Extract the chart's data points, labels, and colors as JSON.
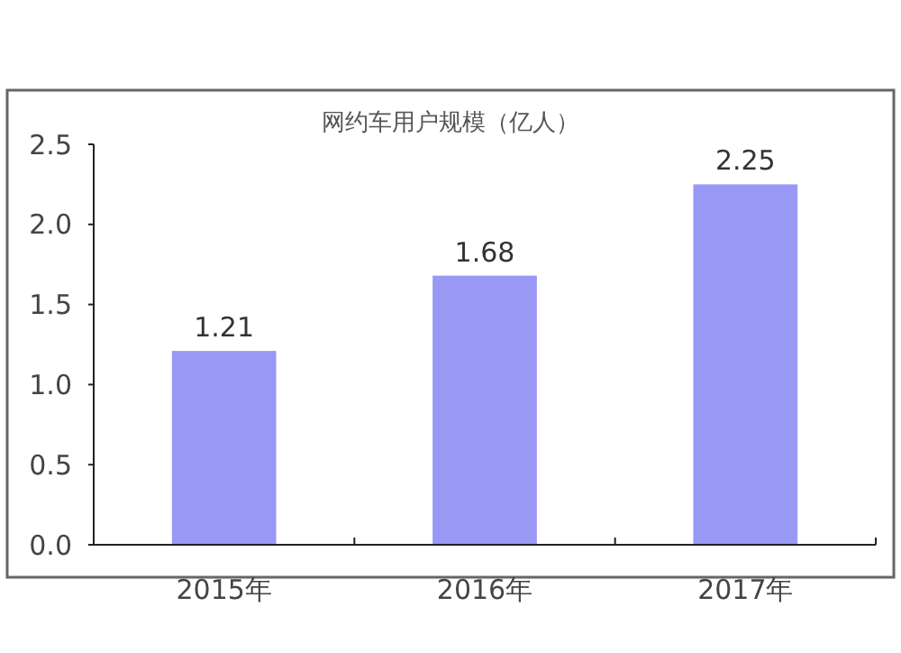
{
  "chart_data": {
    "type": "bar",
    "title": "网约车用户规模（亿人）",
    "categories": [
      "2015年",
      "2016年",
      "2017年"
    ],
    "values": [
      1.21,
      1.68,
      2.25
    ],
    "color": "#9999f5",
    "data_labels": true,
    "ylim": [
      0,
      2.5
    ],
    "yticks": [
      {
        "value": 0,
        "label": "0.0"
      },
      0.5,
      {
        "value": 1,
        "label": "1.0"
      },
      1.5,
      {
        "value": 2,
        "label": "2.0"
      },
      2.5
    ],
    "grid": false
  }
}
